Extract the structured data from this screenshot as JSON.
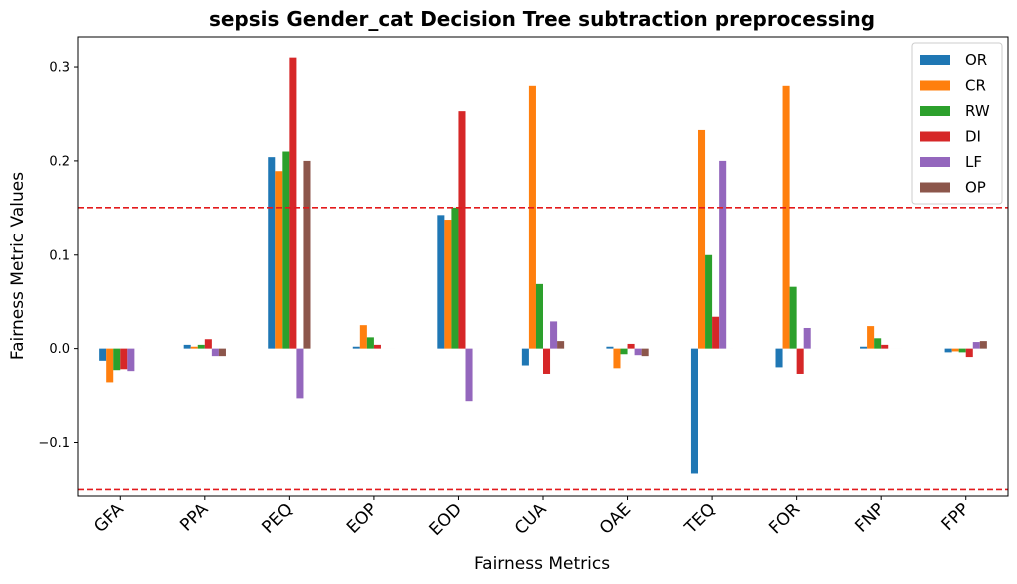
{
  "chart_data": {
    "type": "bar",
    "title": "sepsis Gender_cat Decision Tree subtraction preprocessing",
    "xlabel": "Fairness Metrics",
    "ylabel": "Fairness Metric Values",
    "categories": [
      "GFA",
      "PPA",
      "PEQ",
      "EOP",
      "EOD",
      "CUA",
      "OAE",
      "TEQ",
      "FOR",
      "FNP",
      "FPP"
    ],
    "ylim": [
      -0.157,
      0.332
    ],
    "yticks": [
      -0.1,
      0.0,
      0.1,
      0.2,
      0.3
    ],
    "ytick_labels": [
      "−0.1",
      "0.0",
      "0.1",
      "0.2",
      "0.3"
    ],
    "reference_lines": [
      0.15,
      -0.15
    ],
    "reference_line_color": "#e31a1c",
    "grid": false,
    "legend_position": "top-right",
    "series": [
      {
        "name": "OR",
        "color": "#1f77b4",
        "values": [
          -0.013,
          0.004,
          0.204,
          0.002,
          0.142,
          -0.018,
          0.002,
          -0.133,
          -0.02,
          0.002,
          -0.004
        ]
      },
      {
        "name": "CR",
        "color": "#ff7f0e",
        "values": [
          -0.036,
          0.002,
          0.189,
          0.025,
          0.137,
          0.28,
          -0.021,
          0.233,
          0.28,
          0.024,
          -0.003
        ]
      },
      {
        "name": "RW",
        "color": "#2ca02c",
        "values": [
          -0.023,
          0.004,
          0.21,
          0.012,
          0.15,
          0.069,
          -0.006,
          0.1,
          0.066,
          0.011,
          -0.004
        ]
      },
      {
        "name": "DI",
        "color": "#d62728",
        "values": [
          -0.022,
          0.01,
          0.31,
          0.004,
          0.253,
          -0.027,
          0.005,
          0.034,
          -0.027,
          0.004,
          -0.009
        ]
      },
      {
        "name": "LF",
        "color": "#9467bd",
        "values": [
          -0.024,
          -0.008,
          -0.053,
          0.0,
          -0.056,
          0.029,
          -0.007,
          0.2,
          0.022,
          0.0,
          0.007
        ]
      },
      {
        "name": "OP",
        "color": "#8c564b",
        "values": [
          0.0,
          -0.008,
          0.2,
          0.0,
          0.0,
          0.008,
          -0.008,
          0.0,
          0.0,
          0.0,
          0.008
        ]
      }
    ]
  }
}
